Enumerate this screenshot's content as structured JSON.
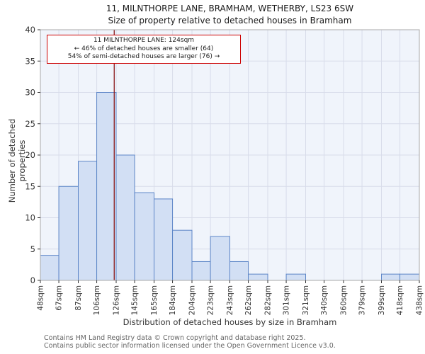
{
  "title": "11, MILNTHORPE LANE, BRAMHAM, WETHERBY, LS23 6SW",
  "subtitle": "Size of property relative to detached houses in Bramham",
  "annotation": {
    "line1": "11 MILNTHORPE LANE: 124sqm",
    "line2": "← 46% of detached houses are smaller (64)",
    "line3": "54% of semi-detached houses are larger (76) →"
  },
  "footer": {
    "line1": "Contains HM Land Registry data © Crown copyright and database right 2025.",
    "line2": "Contains public sector information licensed under the Open Government Licence v3.0."
  },
  "chart_data": {
    "type": "bar",
    "title": "11, MILNTHORPE LANE, BRAMHAM, WETHERBY, LS23 6SW",
    "subtitle": "Size of property relative to detached houses in Bramham",
    "xlabel": "Distribution of detached houses by size in Bramham",
    "ylabel": "Number of detached properties",
    "bin_edges": [
      48,
      67,
      87,
      106,
      126,
      145,
      165,
      184,
      204,
      223,
      243,
      262,
      282,
      301,
      321,
      340,
      360,
      379,
      399,
      418,
      438
    ],
    "categories": [
      "48sqm",
      "67sqm",
      "87sqm",
      "106sqm",
      "126sqm",
      "145sqm",
      "165sqm",
      "184sqm",
      "204sqm",
      "223sqm",
      "243sqm",
      "262sqm",
      "282sqm",
      "301sqm",
      "321sqm",
      "340sqm",
      "360sqm",
      "379sqm",
      "399sqm",
      "418sqm",
      "438sqm"
    ],
    "values": [
      4,
      15,
      19,
      30,
      20,
      14,
      13,
      8,
      3,
      7,
      3,
      1,
      0,
      1,
      0,
      0,
      0,
      0,
      1,
      1
    ],
    "ylim": [
      0,
      40
    ],
    "ytick_step": 5,
    "grid": true,
    "marker": {
      "value": 124,
      "label": "11 MILNTHORPE LANE: 124sqm",
      "color": "#8b1a1a"
    },
    "colors": {
      "bar_fill": "#d2dff4",
      "bar_stroke": "#5c85c7",
      "grid": "#d8dcea",
      "plot_bg": "#f0f4fb",
      "axis_border": "#a8a8a8",
      "tick_text": "#333333",
      "annotation_border": "#cc0000"
    }
  }
}
